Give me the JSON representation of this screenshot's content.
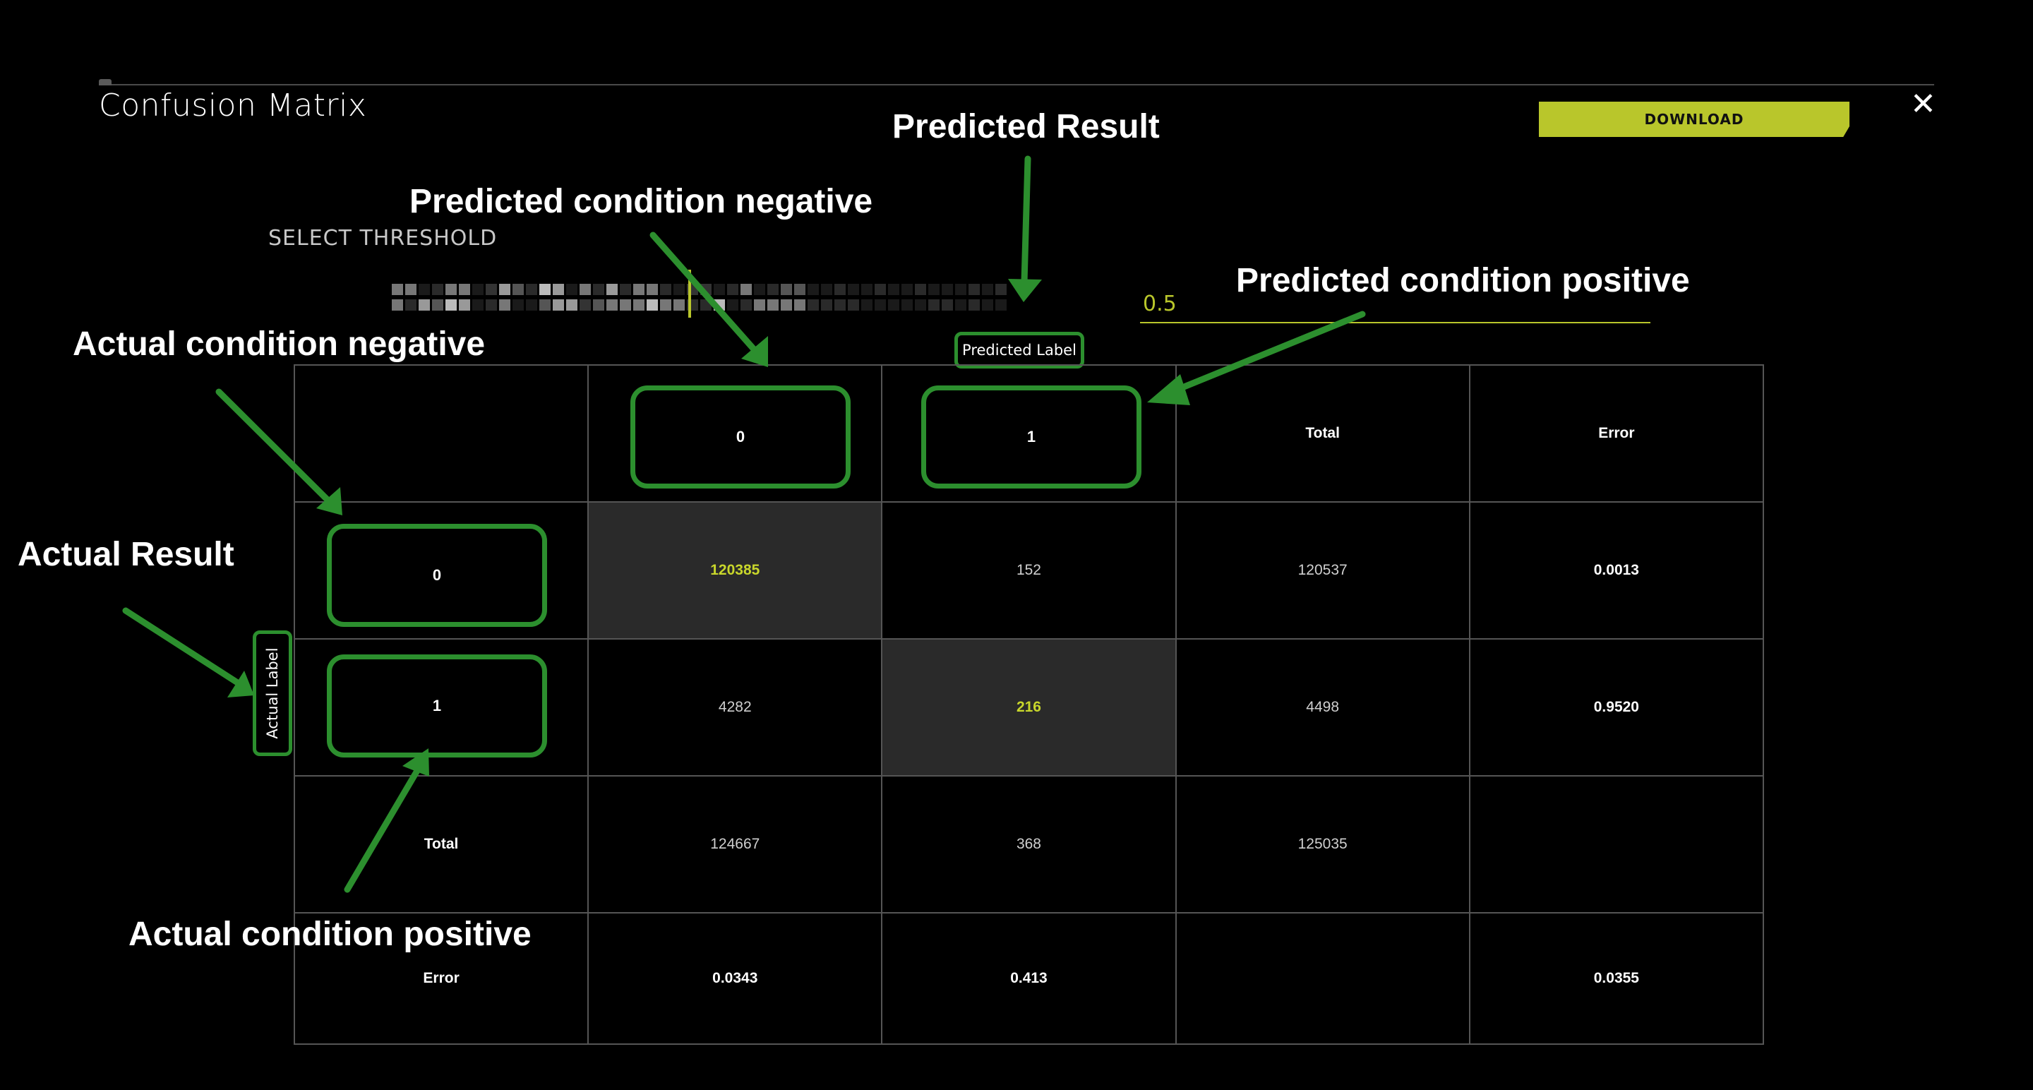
{
  "modal": {
    "title": "Confusion Matrix",
    "download_label": "DOWNLOAD",
    "close_glyph": "✕"
  },
  "threshold": {
    "label": "SELECT THRESHOLD",
    "value": "0.5"
  },
  "axis": {
    "predicted": "Predicted Label",
    "actual": "Actual Label"
  },
  "matrix": {
    "header": [
      "",
      "0",
      "1",
      "Total",
      "Error"
    ],
    "rows": [
      [
        "0",
        "120385",
        "152",
        "120537",
        "0.0013"
      ],
      [
        "1",
        "4282",
        "216",
        "4498",
        "0.9520"
      ],
      [
        "Total",
        "124667",
        "368",
        "125035",
        ""
      ],
      [
        "Error",
        "0.0343",
        "0.413",
        "",
        "0.0355"
      ]
    ]
  },
  "annotations": {
    "predicted_result": "Predicted Result",
    "predicted_negative": "Predicted condition negative",
    "predicted_positive": "Predicted condition positive",
    "actual_negative": "Actual condition negative",
    "actual_result": "Actual Result",
    "actual_positive": "Actual condition positive"
  },
  "colors": {
    "accent": "#b9c62b",
    "annotation_green": "#2c8f2e",
    "highlight_cell": "#2a2a2a"
  }
}
